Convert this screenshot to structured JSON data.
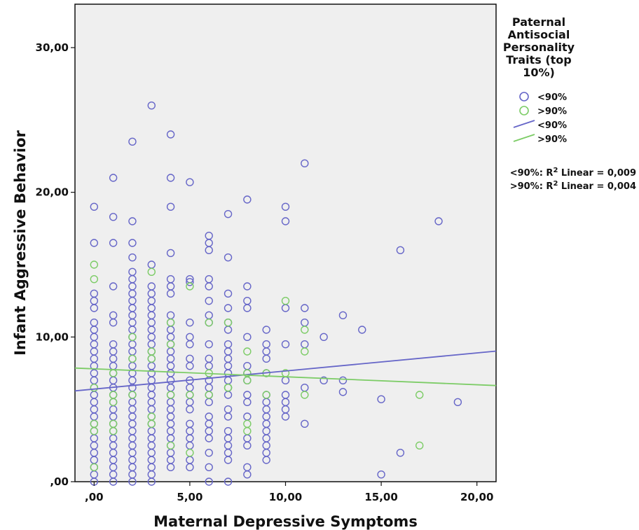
{
  "chart_data": {
    "type": "scatter",
    "title": "",
    "xlabel": "Maternal Depressive Symptoms",
    "ylabel": "Infant Aggressive Behavior",
    "xlim": [
      -1,
      21
    ],
    "ylim": [
      0,
      33
    ],
    "x_ticks": [
      0,
      5,
      10,
      15,
      20
    ],
    "x_tick_labels": [
      ",00",
      "5,00",
      "10,00",
      "15,00",
      "20,00"
    ],
    "y_ticks": [
      0,
      10,
      20,
      30
    ],
    "y_tick_labels": [
      ",00",
      "10,00",
      "20,00",
      "30,00"
    ],
    "grid": false,
    "legend": {
      "title_lines": [
        "Paternal",
        "Antisocial",
        "Personality",
        "Traits (top",
        "10%)"
      ],
      "placement": "right",
      "entries": [
        {
          "label": "<90%",
          "kind": "marker",
          "series": 0
        },
        {
          "label": ">90%",
          "kind": "marker",
          "series": 1
        },
        {
          "label": "<90%",
          "kind": "line",
          "series": 0
        },
        {
          "label": ">90%",
          "kind": "line",
          "series": 1
        }
      ]
    },
    "fit_labels": [
      {
        "prefix": "<90%: R",
        "sup": "2",
        "suffix": " Linear = 0,009"
      },
      {
        "prefix": ">90%: R",
        "sup": "2",
        "suffix": " Linear = 0,004"
      }
    ],
    "series": [
      {
        "name": "<90%",
        "color": "#6666c8",
        "fit": {
          "intercept": 6.4,
          "slope": 0.125
        },
        "points": [
          [
            0,
            19
          ],
          [
            0,
            16.5
          ],
          [
            0,
            13
          ],
          [
            0,
            12.5
          ],
          [
            0,
            12
          ],
          [
            0,
            11
          ],
          [
            0,
            10.5
          ],
          [
            0,
            10
          ],
          [
            0,
            9.5
          ],
          [
            0,
            9
          ],
          [
            0,
            8.5
          ],
          [
            0,
            8
          ],
          [
            0,
            7.5
          ],
          [
            0,
            7
          ],
          [
            0,
            6.5
          ],
          [
            0,
            6
          ],
          [
            0,
            5.5
          ],
          [
            0,
            5
          ],
          [
            0,
            4.5
          ],
          [
            0,
            4
          ],
          [
            0,
            3.5
          ],
          [
            0,
            3
          ],
          [
            0,
            2.5
          ],
          [
            0,
            2
          ],
          [
            0,
            1.5
          ],
          [
            0,
            1
          ],
          [
            0,
            0.5
          ],
          [
            0,
            0
          ],
          [
            1,
            21
          ],
          [
            1,
            18.3
          ],
          [
            1,
            16.5
          ],
          [
            1,
            13.5
          ],
          [
            1,
            11.5
          ],
          [
            1,
            11
          ],
          [
            1,
            9.5
          ],
          [
            1,
            9
          ],
          [
            1,
            8.5
          ],
          [
            1,
            8
          ],
          [
            1,
            7.5
          ],
          [
            1,
            7
          ],
          [
            1,
            6.5
          ],
          [
            1,
            6
          ],
          [
            1,
            5.5
          ],
          [
            1,
            5
          ],
          [
            1,
            4.5
          ],
          [
            1,
            4
          ],
          [
            1,
            3.5
          ],
          [
            1,
            3
          ],
          [
            1,
            2.5
          ],
          [
            1,
            2
          ],
          [
            1,
            1.5
          ],
          [
            1,
            1
          ],
          [
            1,
            0.5
          ],
          [
            1,
            0
          ],
          [
            2,
            23.5
          ],
          [
            2,
            18
          ],
          [
            2,
            16.5
          ],
          [
            2,
            15.5
          ],
          [
            2,
            14.5
          ],
          [
            2,
            14
          ],
          [
            2,
            13.5
          ],
          [
            2,
            13
          ],
          [
            2,
            12.5
          ],
          [
            2,
            12
          ],
          [
            2,
            11.5
          ],
          [
            2,
            11
          ],
          [
            2,
            10.5
          ],
          [
            2,
            10
          ],
          [
            2,
            9.5
          ],
          [
            2,
            9
          ],
          [
            2,
            8.5
          ],
          [
            2,
            8
          ],
          [
            2,
            7.5
          ],
          [
            2,
            7
          ],
          [
            2,
            6.5
          ],
          [
            2,
            6
          ],
          [
            2,
            5.5
          ],
          [
            2,
            5
          ],
          [
            2,
            4.5
          ],
          [
            2,
            4
          ],
          [
            2,
            3.5
          ],
          [
            2,
            3
          ],
          [
            2,
            2.5
          ],
          [
            2,
            2
          ],
          [
            2,
            1.5
          ],
          [
            2,
            1
          ],
          [
            2,
            0.5
          ],
          [
            2,
            0
          ],
          [
            3,
            26
          ],
          [
            3,
            15
          ],
          [
            3,
            13.5
          ],
          [
            3,
            13
          ],
          [
            3,
            12.5
          ],
          [
            3,
            12
          ],
          [
            3,
            11.5
          ],
          [
            3,
            11
          ],
          [
            3,
            10.5
          ],
          [
            3,
            10
          ],
          [
            3,
            9.5
          ],
          [
            3,
            9
          ],
          [
            3,
            8.5
          ],
          [
            3,
            8
          ],
          [
            3,
            7.5
          ],
          [
            3,
            7
          ],
          [
            3,
            6.5
          ],
          [
            3,
            6
          ],
          [
            3,
            5.5
          ],
          [
            3,
            5
          ],
          [
            3,
            4.5
          ],
          [
            3,
            4
          ],
          [
            3,
            3.5
          ],
          [
            3,
            3
          ],
          [
            3,
            2.5
          ],
          [
            3,
            2
          ],
          [
            3,
            1.5
          ],
          [
            3,
            1
          ],
          [
            3,
            0.5
          ],
          [
            3,
            0
          ],
          [
            4,
            24
          ],
          [
            4,
            21
          ],
          [
            4,
            19
          ],
          [
            4,
            15.8
          ],
          [
            4,
            14
          ],
          [
            4,
            13.5
          ],
          [
            4,
            13
          ],
          [
            4,
            11.5
          ],
          [
            4,
            11
          ],
          [
            4,
            10.5
          ],
          [
            4,
            10
          ],
          [
            4,
            9.5
          ],
          [
            4,
            9
          ],
          [
            4,
            8.5
          ],
          [
            4,
            8
          ],
          [
            4,
            7.5
          ],
          [
            4,
            7
          ],
          [
            4,
            6.5
          ],
          [
            4,
            6
          ],
          [
            4,
            5.5
          ],
          [
            4,
            5
          ],
          [
            4,
            4.5
          ],
          [
            4,
            4
          ],
          [
            4,
            3.5
          ],
          [
            4,
            3
          ],
          [
            4,
            2.5
          ],
          [
            4,
            2
          ],
          [
            4,
            1.5
          ],
          [
            4,
            1
          ],
          [
            5,
            20.7
          ],
          [
            5,
            14
          ],
          [
            5,
            13.8
          ],
          [
            5,
            11
          ],
          [
            5,
            10
          ],
          [
            5,
            9.5
          ],
          [
            5,
            8.5
          ],
          [
            5,
            8
          ],
          [
            5,
            7
          ],
          [
            5,
            6.5
          ],
          [
            5,
            6
          ],
          [
            5,
            5.5
          ],
          [
            5,
            5
          ],
          [
            5,
            4
          ],
          [
            5,
            3.5
          ],
          [
            5,
            3
          ],
          [
            5,
            2.5
          ],
          [
            5,
            1.5
          ],
          [
            5,
            1
          ],
          [
            6,
            17
          ],
          [
            6,
            16.5
          ],
          [
            6,
            16
          ],
          [
            6,
            14
          ],
          [
            6,
            13.5
          ],
          [
            6,
            12.5
          ],
          [
            6,
            11.5
          ],
          [
            6,
            11
          ],
          [
            6,
            9.5
          ],
          [
            6,
            8.5
          ],
          [
            6,
            8
          ],
          [
            6,
            7
          ],
          [
            6,
            6.5
          ],
          [
            6,
            6
          ],
          [
            6,
            5.5
          ],
          [
            6,
            4.5
          ],
          [
            6,
            4
          ],
          [
            6,
            3.5
          ],
          [
            6,
            3
          ],
          [
            6,
            2
          ],
          [
            6,
            1
          ],
          [
            6,
            0
          ],
          [
            7,
            18.5
          ],
          [
            7,
            15.5
          ],
          [
            7,
            13
          ],
          [
            7,
            12
          ],
          [
            7,
            11
          ],
          [
            7,
            10.5
          ],
          [
            7,
            9.5
          ],
          [
            7,
            9
          ],
          [
            7,
            8.5
          ],
          [
            7,
            8
          ],
          [
            7,
            7.5
          ],
          [
            7,
            7
          ],
          [
            7,
            6.5
          ],
          [
            7,
            6
          ],
          [
            7,
            5
          ],
          [
            7,
            4.5
          ],
          [
            7,
            3.5
          ],
          [
            7,
            3
          ],
          [
            7,
            2.5
          ],
          [
            7,
            2
          ],
          [
            7,
            1.5
          ],
          [
            7,
            0
          ],
          [
            8,
            19.5
          ],
          [
            8,
            13.5
          ],
          [
            8,
            12.5
          ],
          [
            8,
            12
          ],
          [
            8,
            10
          ],
          [
            8,
            8
          ],
          [
            8,
            7.5
          ],
          [
            8,
            7
          ],
          [
            8,
            6
          ],
          [
            8,
            5.5
          ],
          [
            8,
            4.5
          ],
          [
            8,
            3
          ],
          [
            8,
            2.5
          ],
          [
            8,
            1
          ],
          [
            8,
            0.5
          ],
          [
            9,
            10.5
          ],
          [
            9,
            9.5
          ],
          [
            9,
            9
          ],
          [
            9,
            8.5
          ],
          [
            9,
            7.5
          ],
          [
            9,
            6
          ],
          [
            9,
            5.5
          ],
          [
            9,
            5
          ],
          [
            9,
            4.5
          ],
          [
            9,
            4
          ],
          [
            9,
            3.5
          ],
          [
            9,
            3
          ],
          [
            9,
            2.5
          ],
          [
            9,
            2
          ],
          [
            9,
            1.5
          ],
          [
            10,
            19
          ],
          [
            10,
            18
          ],
          [
            10,
            12
          ],
          [
            10,
            9.5
          ],
          [
            10,
            7
          ],
          [
            10,
            6
          ],
          [
            10,
            5.5
          ],
          [
            10,
            5
          ],
          [
            10,
            4.5
          ],
          [
            11,
            22
          ],
          [
            11,
            12
          ],
          [
            11,
            11
          ],
          [
            11,
            9.5
          ],
          [
            11,
            6.5
          ],
          [
            11,
            4
          ],
          [
            12,
            10
          ],
          [
            12,
            7
          ],
          [
            13,
            11.5
          ],
          [
            13,
            7
          ],
          [
            13,
            6.2
          ],
          [
            14,
            10.5
          ],
          [
            15,
            5.7
          ],
          [
            15,
            0.5
          ],
          [
            16,
            16
          ],
          [
            16,
            2
          ],
          [
            18,
            18
          ],
          [
            19,
            5.5
          ]
        ]
      },
      {
        "name": ">90%",
        "color": "#7ccc66",
        "fit": {
          "intercept": 7.8,
          "slope": -0.055
        },
        "points": [
          [
            0,
            15
          ],
          [
            0,
            14
          ],
          [
            0,
            6.5
          ],
          [
            0,
            4
          ],
          [
            0,
            3.5
          ],
          [
            0,
            1
          ],
          [
            1,
            7.5
          ],
          [
            1,
            6
          ],
          [
            1,
            5.5
          ],
          [
            1,
            4
          ],
          [
            1,
            3.5
          ],
          [
            2,
            10
          ],
          [
            2,
            8.5
          ],
          [
            2,
            6
          ],
          [
            3,
            14.5
          ],
          [
            3,
            9
          ],
          [
            3,
            8.5
          ],
          [
            3,
            4.5
          ],
          [
            3,
            4
          ],
          [
            4,
            11
          ],
          [
            4,
            9.5
          ],
          [
            4,
            6
          ],
          [
            4,
            2.5
          ],
          [
            5,
            13.5
          ],
          [
            5,
            6
          ],
          [
            5,
            2
          ],
          [
            6,
            11
          ],
          [
            6,
            7.5
          ],
          [
            6,
            6
          ],
          [
            7,
            11
          ],
          [
            7,
            6.5
          ],
          [
            7,
            6.5
          ],
          [
            8,
            9
          ],
          [
            8,
            7.5
          ],
          [
            8,
            7
          ],
          [
            8,
            3.5
          ],
          [
            8,
            4
          ],
          [
            9,
            7.5
          ],
          [
            9,
            6
          ],
          [
            10,
            12.5
          ],
          [
            10,
            7.5
          ],
          [
            11,
            10.5
          ],
          [
            11,
            9
          ],
          [
            11,
            6
          ],
          [
            17,
            6
          ],
          [
            17,
            2.5
          ]
        ]
      }
    ]
  }
}
